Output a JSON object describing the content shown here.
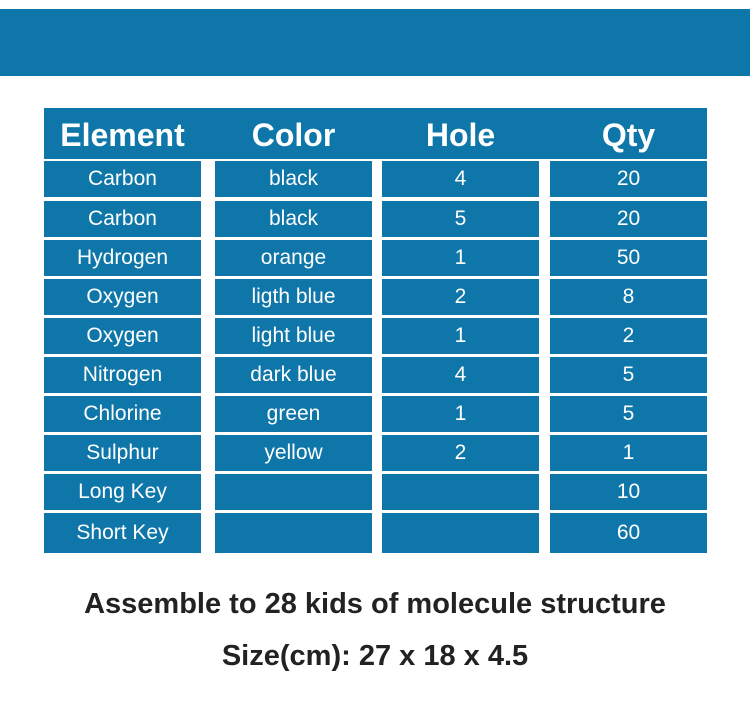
{
  "colors": {
    "accent": "#0e76a8"
  },
  "table": {
    "headers": [
      "Element",
      "Color",
      "Hole",
      "Qty"
    ],
    "rows": [
      [
        "Carbon",
        "black",
        "4",
        "20"
      ],
      [
        "Carbon",
        "black",
        "5",
        "20"
      ],
      [
        "Hydrogen",
        "orange",
        "1",
        "50"
      ],
      [
        "Oxygen",
        "ligth blue",
        "2",
        "8"
      ],
      [
        "Oxygen",
        "light blue",
        "1",
        "2"
      ],
      [
        "Nitrogen",
        "dark blue",
        "4",
        "5"
      ],
      [
        "Chlorine",
        "green",
        "1",
        "5"
      ],
      [
        "Sulphur",
        "yellow",
        "2",
        "1"
      ],
      [
        "Long Key",
        "",
        "",
        "10"
      ],
      [
        "Short Key",
        "",
        "",
        "60"
      ]
    ]
  },
  "footer": {
    "line1": "Assemble to 28 kids of molecule structure",
    "line2": "Size(cm): 27 x 18 x 4.5"
  }
}
